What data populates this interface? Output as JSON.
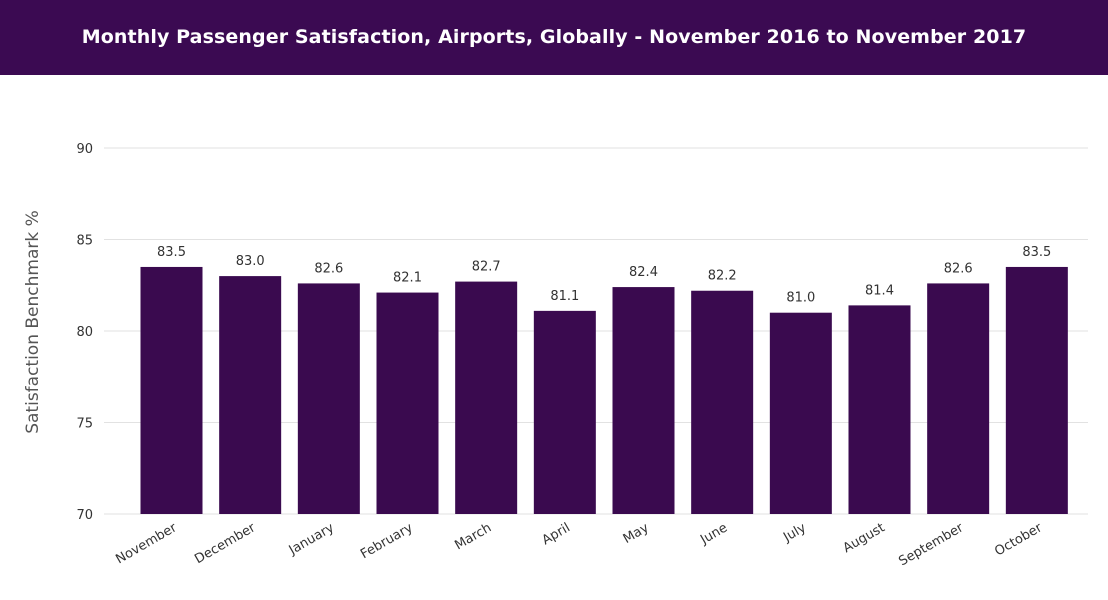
{
  "header": {
    "title": "Monthly Passenger Satisfaction, Airports, Globally - November 2016 to November 2017"
  },
  "colors": {
    "header_bg": "#3b0a52",
    "bar": "#3a0a4f",
    "grid": "#e2e2e2",
    "axis_text": "#333333"
  },
  "chart_data": {
    "type": "bar",
    "title": "Monthly Passenger Satisfaction, Airports, Globally - November 2016 to November 2017",
    "xlabel": "",
    "ylabel": "Satisfaction Benchmark %",
    "ylim": [
      70,
      90
    ],
    "yticks": [
      "70",
      "75",
      "80",
      "85",
      "90"
    ],
    "grid": true,
    "categories": [
      "November",
      "December",
      "January",
      "February",
      "March",
      "April",
      "May",
      "June",
      "July",
      "August",
      "September",
      "October"
    ],
    "values": [
      83.5,
      83.0,
      82.6,
      82.1,
      82.7,
      81.1,
      82.4,
      82.2,
      81.0,
      81.4,
      82.6,
      83.5
    ],
    "data_labels": [
      "83.5",
      "83.0",
      "82.6",
      "82.1",
      "82.7",
      "81.1",
      "82.4",
      "82.2",
      "81.0",
      "81.4",
      "82.6",
      "83.5"
    ]
  }
}
